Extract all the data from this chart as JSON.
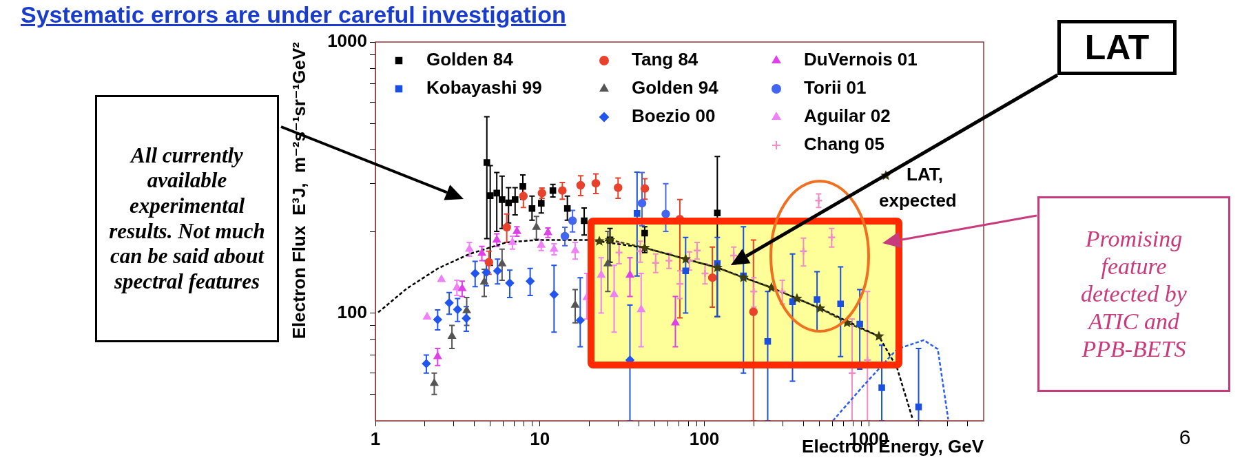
{
  "chart_data": {
    "type": "scatter",
    "title": "Systematic errors are under careful investigation",
    "xlabel": "Electron Energy, GeV",
    "ylabel": "Electron Flux  E³J,  m⁻²s⁻¹sr⁻¹GeV²",
    "log": "xy",
    "legend": "top",
    "xlim": [
      1,
      5000
    ],
    "ylim": [
      40,
      1000
    ],
    "xticks": [
      1,
      {
        "value": 2,
        "label": null
      },
      {
        "value": 3,
        "label": null
      },
      {
        "value": 4,
        "label": null
      },
      {
        "value": 5,
        "label": null
      },
      {
        "value": 6,
        "label": null
      },
      {
        "value": 7,
        "label": null
      },
      {
        "value": 8,
        "label": null
      },
      {
        "value": 9,
        "label": null
      },
      10,
      {
        "value": 20,
        "label": null
      },
      {
        "value": 30,
        "label": null
      },
      {
        "value": 40,
        "label": null
      },
      {
        "value": 50,
        "label": null
      },
      {
        "value": 60,
        "label": null
      },
      {
        "value": 70,
        "label": null
      },
      {
        "value": 80,
        "label": null
      },
      {
        "value": 90,
        "label": null
      },
      100,
      {
        "value": 200,
        "label": null
      },
      {
        "value": 300,
        "label": null
      },
      {
        "value": 400,
        "label": null
      },
      {
        "value": 500,
        "label": null
      },
      {
        "value": 600,
        "label": null
      },
      {
        "value": 700,
        "label": null
      },
      {
        "value": 800,
        "label": null
      },
      {
        "value": 900,
        "label": null
      },
      1000,
      {
        "value": 2000,
        "label": null
      },
      {
        "value": 3000,
        "label": null
      },
      {
        "value": 4000,
        "label": null
      }
    ],
    "yticks": [
      {
        "value": 50,
        "label": null
      },
      {
        "value": 60,
        "label": null
      },
      {
        "value": 70,
        "label": null
      },
      {
        "value": 80,
        "label": null
      },
      {
        "value": 90,
        "label": null
      },
      100,
      {
        "value": 200,
        "label": null
      },
      {
        "value": 300,
        "label": null
      },
      {
        "value": 400,
        "label": null
      },
      {
        "value": 500,
        "label": null
      },
      {
        "value": 600,
        "label": null
      },
      {
        "value": 700,
        "label": null
      },
      {
        "value": 800,
        "label": null
      },
      {
        "value": 900,
        "label": null
      },
      1000
    ],
    "series": [
      {
        "name": "Golden 84",
        "color": "#000000",
        "marker": "square",
        "x": [
          4.76,
          4.99,
          5.47,
          5.89,
          6.45,
          7.07,
          7.88,
          8.96,
          10.2,
          12.0,
          14.7,
          18.6,
          26.7,
          43.4,
          120
        ],
        "values": [
          359,
          271,
          277,
          262,
          255,
          262,
          293,
          243,
          254,
          283,
          243,
          219,
          186,
          197,
          234
        ],
        "errors": [
          [
            188,
            530
          ],
          [
            150,
            350
          ],
          [
            200,
            330
          ],
          [
            205,
            320
          ],
          [
            215,
            290
          ],
          [
            230,
            290
          ],
          30,
          [
            220,
            270
          ],
          20,
          15,
          [
            220,
            270
          ],
          25,
          [
            154,
            205
          ],
          [
            167,
            208
          ],
          [
            97,
            378
          ]
        ]
      },
      {
        "name": "Kobayashi 99",
        "color": "#1a4fe0",
        "marker": "square",
        "x": [
          39,
          77,
          120,
          173,
          243,
          344,
          485,
          674,
          882,
          1200,
          2010
        ],
        "values": [
          233,
          143,
          152,
          137,
          78.5,
          110,
          112,
          108,
          91,
          53,
          45
        ],
        "errors": [
          [
            137,
            331
          ],
          [
            100,
            190
          ],
          [
            97,
            190
          ],
          [
            60,
            208
          ],
          [
            40,
            120
          ],
          [
            56,
            165
          ],
          [
            86,
            142
          ],
          [
            69,
            148
          ],
          [
            62,
            122
          ],
          [
            40,
            76
          ],
          [
            40,
            74
          ]
        ]
      },
      {
        "name": "Tang 84",
        "color": "#e8412c",
        "marker": "circle",
        "x": [
          4.9,
          6.29,
          7.94,
          10.3,
          13.7,
          17.7,
          21.9,
          29.9,
          43.5,
          71,
          112,
          199
        ],
        "values": [
          154,
          207,
          270,
          277,
          283,
          296,
          301,
          290,
          288,
          222,
          135,
          101
        ],
        "errors": [
          15,
          25,
          25,
          12,
          20,
          25,
          25,
          25,
          25,
          [
            96,
            262
          ],
          [
            105,
            175
          ],
          [
            40,
            186
          ]
        ]
      },
      {
        "name": "Golden 94",
        "color": "#555555",
        "marker": "triangle",
        "x": [
          2.28,
          2.92,
          3.59,
          4.59,
          5.89,
          9.53,
          16.4,
          25.9
        ],
        "values": [
          55,
          82,
          102,
          130,
          152,
          207,
          107,
          152
        ],
        "errors": [
          5,
          8,
          12,
          15,
          20,
          20,
          15,
          [
            120,
            200
          ]
        ]
      },
      {
        "name": "Boezio 00",
        "color": "#2255ee",
        "marker": "diamond",
        "x": [
          2.04,
          2.39,
          2.81,
          3.16,
          3.57,
          4.04,
          4.73,
          5.53,
          6.56,
          8.73,
          12.2,
          17.6,
          35.3
        ],
        "values": [
          65,
          94.6,
          109,
          103,
          95.6,
          140,
          141,
          143,
          129,
          131,
          117,
          94,
          67
        ],
        "errors": [
          5,
          8,
          10,
          10,
          10,
          15,
          15,
          15,
          15,
          15,
          [
            85,
            150
          ],
          [
            75,
            135
          ],
          [
            40,
            107
          ]
        ]
      },
      {
        "name": "DuVernois 01",
        "color": "#e040e8",
        "marker": "triangle",
        "x": [
          2.39,
          3.37,
          4.44,
          5.47,
          7.25,
          11.2,
          35.3,
          66.7
        ],
        "values": [
          69,
          123,
          166,
          186,
          200,
          198,
          138,
          92
        ],
        "errors": [
          5,
          8,
          10,
          10,
          8,
          8,
          [
            115,
            160
          ],
          [
            75,
            115
          ]
        ]
      },
      {
        "name": "Torii 01",
        "color": "#4466ee",
        "marker": "circle",
        "x": [
          14.2,
          15.8,
          41.8,
          58.3
        ],
        "values": [
          192,
          219,
          254,
          232
        ],
        "errors": [
          15,
          20,
          [
            210,
            330
          ],
          [
            200,
            300
          ]
        ]
      },
      {
        "name": "Aguilar 02",
        "color": "#f080f8",
        "marker": "triangle",
        "x": [
          2.06,
          2.52,
          3.13,
          3.73,
          6.81,
          10.2,
          12.2,
          16.4,
          19.3,
          23.6,
          28.3,
          41.3
        ],
        "values": [
          96.7,
          133,
          124,
          172,
          182,
          178,
          172,
          170,
          114,
          138,
          117,
          103
        ],
        "errors": [
          null,
          null,
          8,
          10,
          10,
          8,
          8,
          12,
          [
            95,
            140
          ],
          [
            100,
            160
          ],
          [
            85,
            150
          ],
          [
            75,
            140
          ]
        ]
      },
      {
        "name": "Chang 05",
        "color": "#f08cc8",
        "marker": "cross",
        "x": [
          30.3,
          40.8,
          50.6,
          61,
          71.1,
          81.2,
          90.4,
          101,
          151,
          200,
          298,
          401,
          496,
          595,
          792,
          982
        ],
        "values": [
          167,
          169,
          153,
          156,
          128,
          156,
          170,
          140,
          163,
          120,
          120,
          169,
          260,
          190,
          60,
          67
        ],
        "errors": [
          15,
          15,
          12,
          10,
          15,
          12,
          12,
          12,
          12,
          15,
          12,
          20,
          15,
          15,
          [
            40,
            95
          ],
          [
            40,
            120
          ]
        ]
      },
      {
        "name": "LAT, expected",
        "color": "#3d3d10",
        "type": "line",
        "marker": "star",
        "line_style": "dashed",
        "x": [
          23,
          26.7,
          43.4,
          77,
          120,
          173,
          256,
          366,
          506,
          738,
          1153
        ],
        "values": [
          184,
          186,
          174,
          158,
          147,
          135,
          124,
          113,
          104,
          92,
          82
        ]
      },
      {
        "color": "#000000",
        "type": "line",
        "marker": "none",
        "line_style": "dashed",
        "x": [
          1.04,
          1.55,
          2.4,
          3.73,
          6.22,
          9.6,
          20,
          43.4,
          120,
          256,
          506,
          1153,
          1483,
          1840
        ],
        "values": [
          100.5,
          123,
          146,
          165,
          182,
          186,
          186,
          174,
          147,
          124,
          104,
          82,
          63,
          41
        ]
      },
      {
        "color": "#2a5cf0",
        "type": "line",
        "marker": "none",
        "line_style": "dashed",
        "x": [
          605,
          931,
          1483,
          2163,
          2630,
          3043
        ],
        "values": [
          40,
          54,
          73.5,
          79.4,
          73.5,
          40.5
        ]
      }
    ],
    "annotations": [
      "All currently available experimental results. Not much can be said about spectral features",
      "Promising feature detected by ATIC and PPB-BETS",
      "LAT",
      "6"
    ]
  }
}
